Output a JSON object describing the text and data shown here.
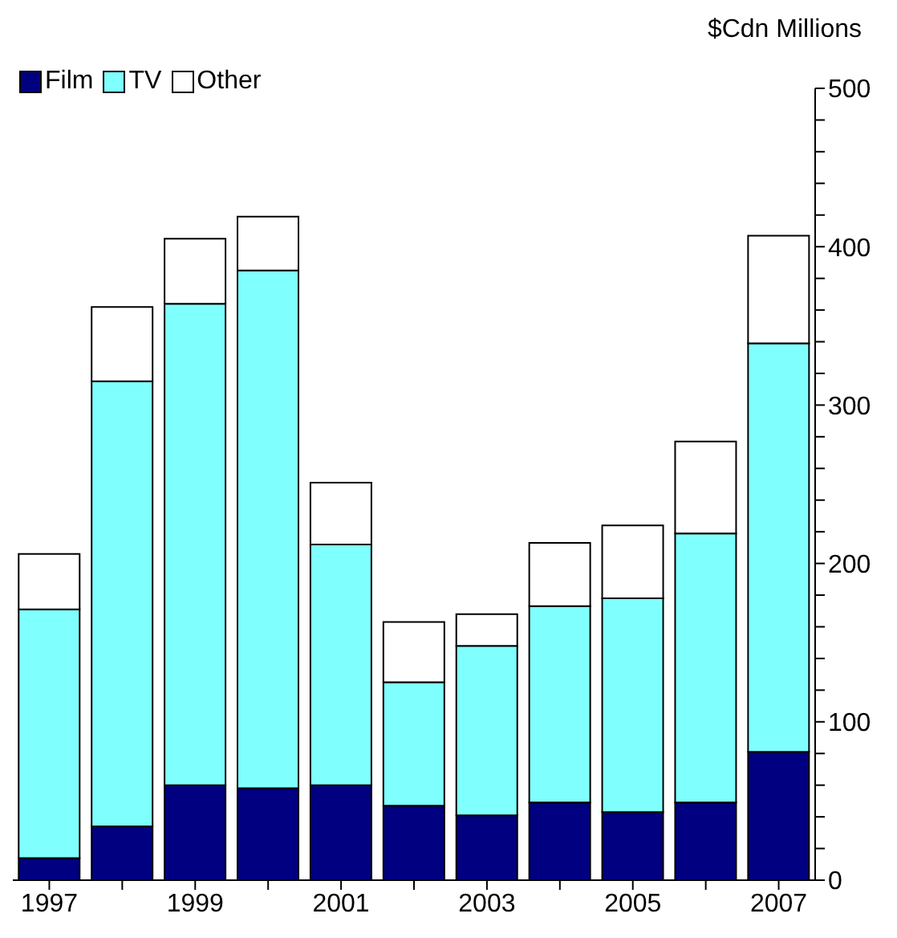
{
  "chart_data": {
    "type": "bar",
    "stacked": true,
    "ylabel": "$Cdn Millions",
    "categories": [
      "1997",
      null,
      "1999",
      null,
      "2001",
      null,
      "2003",
      null,
      "2005",
      null,
      "2007"
    ],
    "series": [
      {
        "name": "Film",
        "color": "#000080",
        "values": [
          14,
          34,
          60,
          58,
          60,
          47,
          41,
          49,
          43,
          49,
          81
        ]
      },
      {
        "name": "TV",
        "color": "#80ffff",
        "values": [
          157,
          281,
          304,
          327,
          152,
          78,
          107,
          124,
          135,
          170,
          258
        ]
      },
      {
        "name": "Other",
        "color": "#ffffff",
        "values": [
          35,
          47,
          41,
          34,
          39,
          38,
          20,
          40,
          46,
          58,
          68
        ]
      }
    ],
    "ylim": [
      0,
      500
    ],
    "yticks": [
      0,
      {
        "value": 20,
        "label": null
      },
      {
        "value": 40,
        "label": null
      },
      {
        "value": 60,
        "label": null
      },
      {
        "value": 80,
        "label": null
      },
      100,
      {
        "value": 120,
        "label": null
      },
      {
        "value": 140,
        "label": null
      },
      {
        "value": 160,
        "label": null
      },
      {
        "value": 180,
        "label": null
      },
      200,
      {
        "value": 220,
        "label": null
      },
      {
        "value": 240,
        "label": null
      },
      {
        "value": 260,
        "label": null
      },
      {
        "value": 280,
        "label": null
      },
      300,
      {
        "value": 320,
        "label": null
      },
      {
        "value": 340,
        "label": null
      },
      {
        "value": 360,
        "label": null
      },
      {
        "value": 380,
        "label": null
      },
      400,
      {
        "value": 420,
        "label": null
      },
      {
        "value": 440,
        "label": null
      },
      {
        "value": 460,
        "label": null
      },
      {
        "value": 480,
        "label": null
      },
      500
    ],
    "legend": "top left",
    "grid": false
  }
}
